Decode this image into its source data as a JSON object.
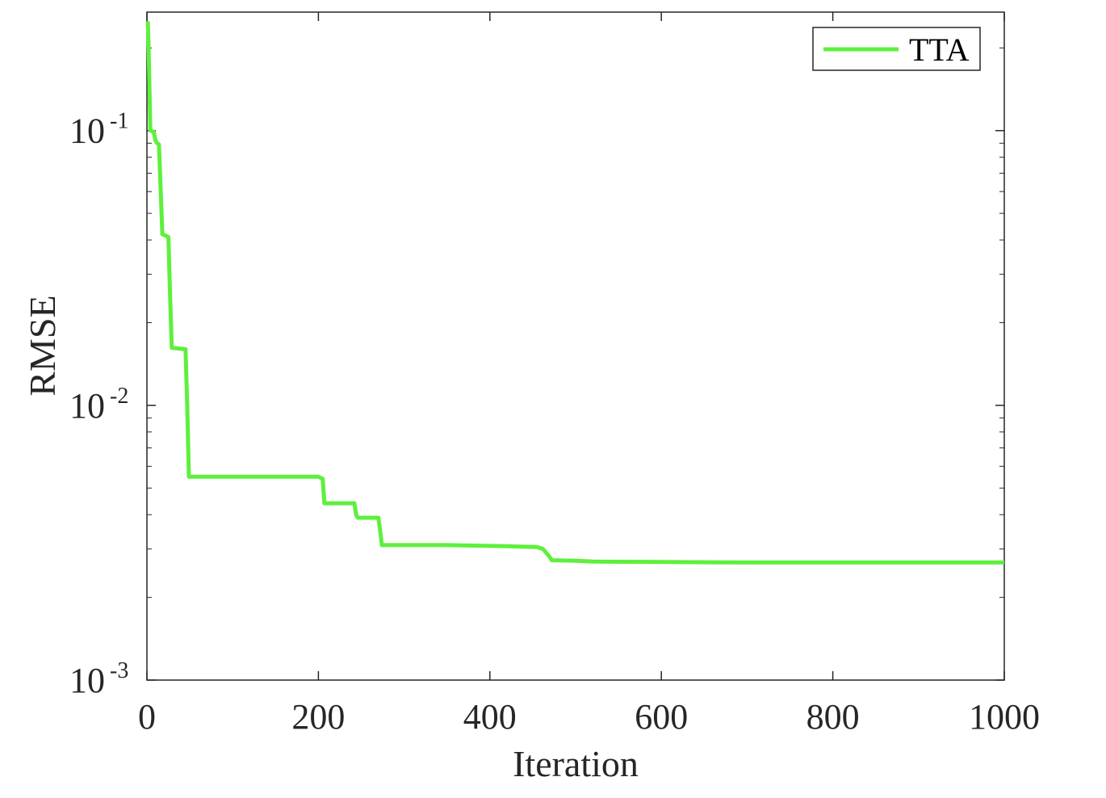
{
  "chart_data": {
    "type": "line",
    "xlabel": "Iteration",
    "ylabel": "RMSE",
    "xlim": [
      0,
      1000
    ],
    "ylim": [
      0.001,
      0.27
    ],
    "yscale": "log",
    "grid": false,
    "legend_position": "top-right",
    "x_ticks": [
      "0",
      "200",
      "400",
      "600",
      "800",
      "1000"
    ],
    "y_ticks": [
      {
        "base": "10",
        "exp": "-3"
      },
      {
        "base": "10",
        "exp": "-2"
      },
      {
        "base": "10",
        "exp": "-1"
      }
    ],
    "series": [
      {
        "name": "TTA",
        "color": "#5ef03c",
        "x": [
          1,
          2,
          4,
          8,
          10,
          12,
          14,
          18,
          25,
          27,
          29,
          45,
          47,
          49,
          100,
          200,
          205,
          207,
          242,
          244,
          246,
          270,
          272,
          274,
          350,
          420,
          455,
          462,
          466,
          470,
          472,
          500,
          520,
          600,
          700,
          800,
          900,
          1000
        ],
        "y": [
          0.25,
          0.2,
          0.1,
          0.099,
          0.092,
          0.09,
          0.089,
          0.042,
          0.041,
          0.025,
          0.0162,
          0.016,
          0.01,
          0.0055,
          0.0055,
          0.0055,
          0.0054,
          0.0044,
          0.0044,
          0.004,
          0.0039,
          0.0039,
          0.0035,
          0.0031,
          0.0031,
          0.00307,
          0.00305,
          0.003,
          0.0029,
          0.0028,
          0.00273,
          0.00272,
          0.0027,
          0.00269,
          0.00268,
          0.00268,
          0.00268,
          0.00268
        ]
      }
    ]
  }
}
